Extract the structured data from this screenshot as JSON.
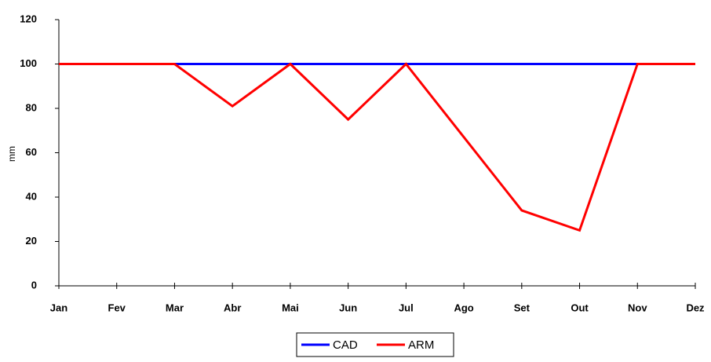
{
  "chart_data": {
    "type": "line",
    "y_label": "mm",
    "categories": [
      "Jan",
      "Fev",
      "Mar",
      "Abr",
      "Mai",
      "Jun",
      "Jul",
      "Ago",
      "Set",
      "Out",
      "Nov",
      "Dez"
    ],
    "series": [
      {
        "name": "CAD",
        "color": "#0000ff",
        "values": [
          100,
          100,
          100,
          100,
          100,
          100,
          100,
          100,
          100,
          100,
          100,
          100
        ]
      },
      {
        "name": "ARM",
        "color": "#ff0000",
        "values": [
          100,
          100,
          100,
          81,
          100,
          75,
          100,
          67,
          34,
          25,
          100,
          100
        ]
      }
    ],
    "ylim": [
      0,
      120
    ],
    "yticks": [
      0,
      20,
      40,
      60,
      80,
      100,
      120
    ],
    "grid": false,
    "legend": "bottom"
  }
}
